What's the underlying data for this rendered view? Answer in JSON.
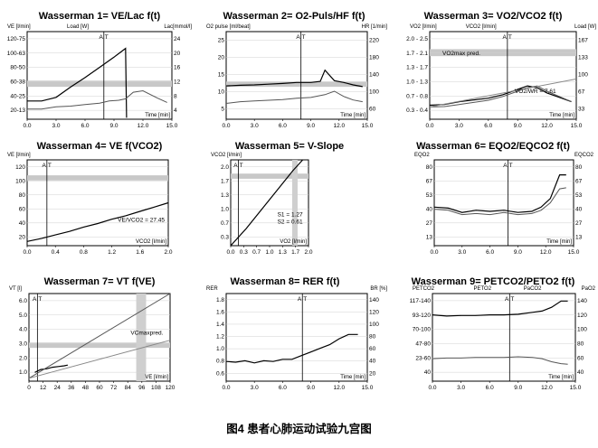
{
  "caption": "图4 患者心肺运动试验九宫图",
  "panels": [
    {
      "id": "p1",
      "title": "Wasserman 1= VE/Lac f(t)",
      "left_label": "VE [l/min]",
      "mid_label": "Load [W]",
      "right_label": "Lac[mmol/l]",
      "left_ticks": [
        "120-75",
        "100-63",
        "80-50",
        "60-38",
        "40-25",
        "20-13"
      ],
      "right_ticks": [
        "24",
        "20",
        "16",
        "12",
        "8",
        "4"
      ],
      "x_ticks": [
        "0.0",
        "3.0",
        "6.0",
        "9.0",
        "12.0",
        "15.0"
      ],
      "x_label": "Time [min]",
      "markers": [
        "A",
        "T"
      ]
    },
    {
      "id": "p2",
      "title": "Wasserman 2= O2-Puls/HF f(t)",
      "left_label": "O2 pulse [ml/beat]",
      "right_label": "HR [1/min]",
      "left_ticks": [
        "25",
        "20",
        "15",
        "10",
        "5"
      ],
      "right_ticks": [
        "220",
        "180",
        "140",
        "100",
        "60"
      ],
      "x_ticks": [
        "0.0",
        "3.0",
        "6.0",
        "9.0",
        "12.0",
        "15.0"
      ],
      "x_label": "Time [min]",
      "markers": [
        "A",
        "T"
      ]
    },
    {
      "id": "p3",
      "title": "Wasserman 3= VO2/VCO2 f(t)",
      "left_label": "VO2 [l/min]",
      "mid_label": "VCO2 [l/min]",
      "right_label": "Load [W]",
      "left_ticks": [
        "2.0 - 2.5",
        "1.7 - 2.1",
        "1.3 - 1.7",
        "1.0 - 1.3",
        "0.7 - 0.8",
        "0.3 - 0.4"
      ],
      "right_ticks": [
        "167",
        "133",
        "100",
        "67",
        "33"
      ],
      "x_ticks": [
        "0.0",
        "3.0",
        "6.0",
        "9.0",
        "12.0",
        "15.0"
      ],
      "x_label": "Time [min]",
      "markers": [
        "A",
        "T"
      ],
      "annotations": [
        "VO2max pred.",
        "VO2/WR = 7.61"
      ]
    },
    {
      "id": "p4",
      "title": "Wasserman 4= VE f(VCO2)",
      "left_label": "VE [l/min]",
      "left_ticks": [
        "120",
        "100",
        "80",
        "60",
        "40",
        "20"
      ],
      "x_ticks": [
        "0.0",
        "0.4",
        "0.8",
        "1.2",
        "1.6",
        "2.0"
      ],
      "x_label": "VCO2 [l/min]",
      "markers": [
        "A",
        "T"
      ],
      "annotations": [
        "VE/VCO2 = 27.45"
      ]
    },
    {
      "id": "p5",
      "title": "Wasserman 5= V-Slope",
      "left_label": "VCO2 [l/min]",
      "left_ticks": [
        "2.0",
        "1.7",
        "1.3",
        "1.0",
        "0.7",
        "0.3"
      ],
      "x_ticks": [
        "0.0",
        "0.3",
        "0.7",
        "1.0",
        "1.3",
        "1.7",
        "2.0"
      ],
      "x_label": "VO2 [l/min]",
      "markers": [
        "A",
        "T"
      ],
      "annotations": [
        "S1 = 1.27",
        "S2 = 0.61"
      ]
    },
    {
      "id": "p6",
      "title": "Wasserman 6= EQO2/EQCO2 f(t)",
      "left_label": "EQO2",
      "right_label": "EQCO2",
      "left_ticks": [
        "80",
        "67",
        "53",
        "40",
        "27",
        "13"
      ],
      "right_ticks": [
        "80",
        "67",
        "53",
        "40",
        "27",
        "13"
      ],
      "x_ticks": [
        "0.0",
        "3.0",
        "6.0",
        "9.0",
        "12.0",
        "15.0"
      ],
      "x_label": "Time [min]",
      "markers": [
        "A",
        "T"
      ]
    },
    {
      "id": "p7",
      "title": "Wasserman 7= VT f(VE)",
      "left_label": "VT [l]",
      "left_ticks": [
        "6.0",
        "5.0",
        "4.0",
        "3.0",
        "2.0",
        "1.0"
      ],
      "x_ticks": [
        "0",
        "12",
        "24",
        "36",
        "48",
        "60",
        "72",
        "84",
        "96",
        "108",
        "120"
      ],
      "x_label": "VE [l/min]",
      "markers": [
        "A",
        "T"
      ],
      "annotations": [
        "VCmaxpred."
      ]
    },
    {
      "id": "p8",
      "title": "Wasserman 8= RER f(t)",
      "left_label": "RER",
      "right_label": "BR [%]",
      "left_ticks": [
        "1.8",
        "1.6",
        "1.4",
        "1.2",
        "1.0",
        "0.8",
        "0.6"
      ],
      "right_ticks": [
        "140",
        "120",
        "100",
        "80",
        "60",
        "40",
        "20"
      ],
      "x_ticks": [
        "0.0",
        "3.0",
        "6.0",
        "9.0",
        "12.0",
        "15.0"
      ],
      "x_label": "Time [min]",
      "markers": [
        "A",
        "T"
      ]
    },
    {
      "id": "p9",
      "title": "Wasserman 9= PETCO2/PETO2 f(t)",
      "left_label": "PETCO2",
      "mid_label": "PETO2",
      "mid2_label": "PaCO2",
      "right_label": "PaO2",
      "left_ticks": [
        "117-140",
        "93-120",
        "70-100",
        "47-80",
        "23-60",
        "40"
      ],
      "right_ticks": [
        "140",
        "120",
        "100",
        "80",
        "60",
        "40"
      ],
      "x_ticks": [
        "0.0",
        "3.0",
        "6.0",
        "9.0",
        "12.0",
        "15.0"
      ],
      "x_label": "Time [min]",
      "markers": [
        "A",
        "T"
      ]
    }
  ],
  "chart_data": [
    {
      "type": "line",
      "title": "Wasserman 1= VE/Lac f(t)",
      "xlabel": "Time [min]",
      "ylabel": "VE [l/min]",
      "xlim": [
        0,
        15
      ],
      "ylim": [
        0,
        120
      ],
      "series": [
        {
          "name": "Load",
          "x": [
            0,
            1.5,
            3,
            4.5,
            6,
            7.5,
            9,
            10.2,
            10.3
          ],
          "y": [
            25,
            25,
            30,
            44,
            57,
            71,
            85,
            97,
            2
          ]
        },
        {
          "name": "VE",
          "x": [
            0,
            1.5,
            3,
            4.5,
            6,
            7.5,
            8.5,
            9.5,
            10.2,
            11,
            12,
            13.5,
            14.5
          ],
          "y": [
            14,
            14,
            17,
            18,
            20,
            22,
            25,
            26,
            28,
            37,
            39,
            29,
            23
          ]
        }
      ]
    },
    {
      "type": "line",
      "title": "Wasserman 2= O2-Puls/HF f(t)",
      "xlabel": "Time [min]",
      "ylabel": "O2 pulse [ml/beat]",
      "xlim": [
        0,
        15
      ],
      "ylim": [
        0,
        25
      ],
      "series": [
        {
          "name": "HR",
          "x": [
            0,
            1.5,
            3,
            4.5,
            6,
            7.5,
            9,
            10,
            10.5,
            11.5,
            12.5,
            13.5,
            14.5
          ],
          "y": [
            9.5,
            9.7,
            9.8,
            10,
            10.2,
            10.5,
            10.5,
            10.8,
            14,
            11,
            10.5,
            9.8,
            9.3
          ]
        },
        {
          "name": "O2 pulse",
          "x": [
            0,
            1.5,
            3,
            4.5,
            6,
            7.5,
            9,
            10.5,
            11.5,
            12.5,
            13.5,
            14.5
          ],
          "y": [
            4.5,
            5,
            5.2,
            5.4,
            5.6,
            6,
            6.2,
            7,
            8,
            6.5,
            5.5,
            5
          ]
        }
      ]
    },
    {
      "type": "line",
      "title": "Wasserman 3= VO2/VCO2 f(t)",
      "xlabel": "Time [min]",
      "ylabel": "VO2 [l/min]",
      "xlim": [
        0,
        15
      ],
      "ylim": [
        0,
        2.5
      ],
      "series": [
        {
          "name": "VO2",
          "x": [
            0,
            1.5,
            3,
            4.5,
            6,
            7.5,
            9,
            10,
            11,
            12,
            13.5,
            14.5
          ],
          "y": [
            0.4,
            0.42,
            0.5,
            0.55,
            0.6,
            0.7,
            0.85,
            0.95,
            0.9,
            0.75,
            0.6,
            0.5
          ]
        },
        {
          "name": "VCO2",
          "x": [
            0,
            1.5,
            3,
            4.5,
            6,
            7.5,
            9,
            10,
            11,
            12,
            13.5,
            14.5
          ],
          "y": [
            0.35,
            0.36,
            0.42,
            0.48,
            0.54,
            0.65,
            0.8,
            0.9,
            0.95,
            0.8,
            0.62,
            0.5
          ]
        },
        {
          "name": "Load",
          "x": [
            0,
            15
          ],
          "y": [
            0.35,
            1.15
          ]
        }
      ]
    },
    {
      "type": "line",
      "title": "Wasserman 4= VE f(VCO2)",
      "xlabel": "VCO2 [l/min]",
      "ylabel": "VE [l/min]",
      "xlim": [
        0,
        2.0
      ],
      "ylim": [
        0,
        120
      ],
      "series": [
        {
          "name": "VE",
          "x": [
            0,
            0.2,
            0.4,
            0.6,
            0.8,
            1.0,
            1.2,
            1.4,
            1.6,
            1.8,
            2.0
          ],
          "y": [
            6,
            10,
            15,
            20,
            26,
            31,
            37,
            42,
            48,
            54,
            60
          ]
        }
      ]
    },
    {
      "type": "line",
      "title": "Wasserman 5= V-Slope",
      "xlabel": "VO2 [l/min]",
      "ylabel": "VCO2 [l/min]",
      "xlim": [
        0,
        2.0
      ],
      "ylim": [
        0,
        2.0
      ],
      "series": [
        {
          "name": "VCO2",
          "x": [
            0,
            0.4,
            0.8,
            1.2,
            1.6,
            1.85
          ],
          "y": [
            0,
            0.4,
            0.85,
            1.3,
            1.75,
            2.0
          ]
        }
      ]
    },
    {
      "type": "line",
      "title": "Wasserman 6= EQO2/EQCO2 f(t)",
      "xlabel": "Time [min]",
      "ylabel": "EQO2",
      "xlim": [
        0,
        15
      ],
      "ylim": [
        0,
        80
      ],
      "series": [
        {
          "name": "EQO2",
          "x": [
            0,
            1.5,
            3,
            4.5,
            6,
            7.5,
            9,
            10.5,
            11.5,
            12.5,
            13.5,
            14.2
          ],
          "y": [
            36,
            35,
            31,
            33,
            32,
            33,
            31,
            32,
            36,
            44,
            66,
            66
          ]
        },
        {
          "name": "EQCO2",
          "x": [
            0,
            1.5,
            3,
            4.5,
            6,
            7.5,
            9,
            10.5,
            11.5,
            12.5,
            13.5,
            14.2
          ],
          "y": [
            34,
            33,
            29,
            30,
            29,
            31,
            29,
            30,
            33,
            40,
            53,
            54
          ]
        }
      ]
    },
    {
      "type": "line",
      "title": "Wasserman 7= VT f(VE)",
      "xlabel": "VE [l/min]",
      "ylabel": "VT [l]",
      "xlim": [
        0,
        120
      ],
      "ylim": [
        0,
        6.0
      ],
      "series": [
        {
          "name": "VT",
          "x": [
            5,
            10,
            15,
            20,
            25,
            30,
            33
          ],
          "y": [
            0.6,
            0.8,
            0.85,
            0.95,
            1.0,
            1.05,
            1.1
          ]
        },
        {
          "name": "line1",
          "x": [
            0,
            120
          ],
          "y": [
            0.2,
            6.0
          ]
        },
        {
          "name": "line2",
          "x": [
            0,
            120
          ],
          "y": [
            0.2,
            2.8
          ]
        }
      ]
    },
    {
      "type": "line",
      "title": "Wasserman 8= RER f(t)",
      "xlabel": "Time [min]",
      "ylabel": "RER",
      "xlim": [
        0,
        15
      ],
      "ylim": [
        0.6,
        1.8
      ],
      "series": [
        {
          "name": "RER",
          "x": [
            0,
            1,
            2,
            3,
            4,
            5,
            6,
            7,
            8,
            9,
            10,
            11,
            12,
            13,
            14
          ],
          "y": [
            0.87,
            0.86,
            0.88,
            0.85,
            0.88,
            0.87,
            0.9,
            0.9,
            0.95,
            1.0,
            1.05,
            1.1,
            1.18,
            1.24,
            1.24
          ]
        }
      ]
    },
    {
      "type": "line",
      "title": "Wasserman 9= PETCO2/PETO2 f(t)",
      "xlabel": "Time [min]",
      "ylabel": "PETCO2",
      "xlim": [
        0,
        15
      ],
      "ylim": [
        0,
        140
      ],
      "series": [
        {
          "name": "PETO2",
          "x": [
            0,
            1.5,
            3,
            4.5,
            6,
            7.5,
            9,
            10.5,
            11.5,
            12.5,
            13.5,
            14.2
          ],
          "y": [
            106,
            104,
            105,
            105,
            106,
            106,
            107,
            110,
            112,
            118,
            128,
            128
          ]
        },
        {
          "name": "PETCO2",
          "x": [
            0,
            1.5,
            3,
            4.5,
            6,
            7.5,
            9,
            10.5,
            11.5,
            12.5,
            13.5,
            14.2
          ],
          "y": [
            36,
            37,
            37,
            38,
            38,
            38,
            39,
            38,
            36,
            31,
            28,
            27
          ]
        }
      ]
    }
  ]
}
